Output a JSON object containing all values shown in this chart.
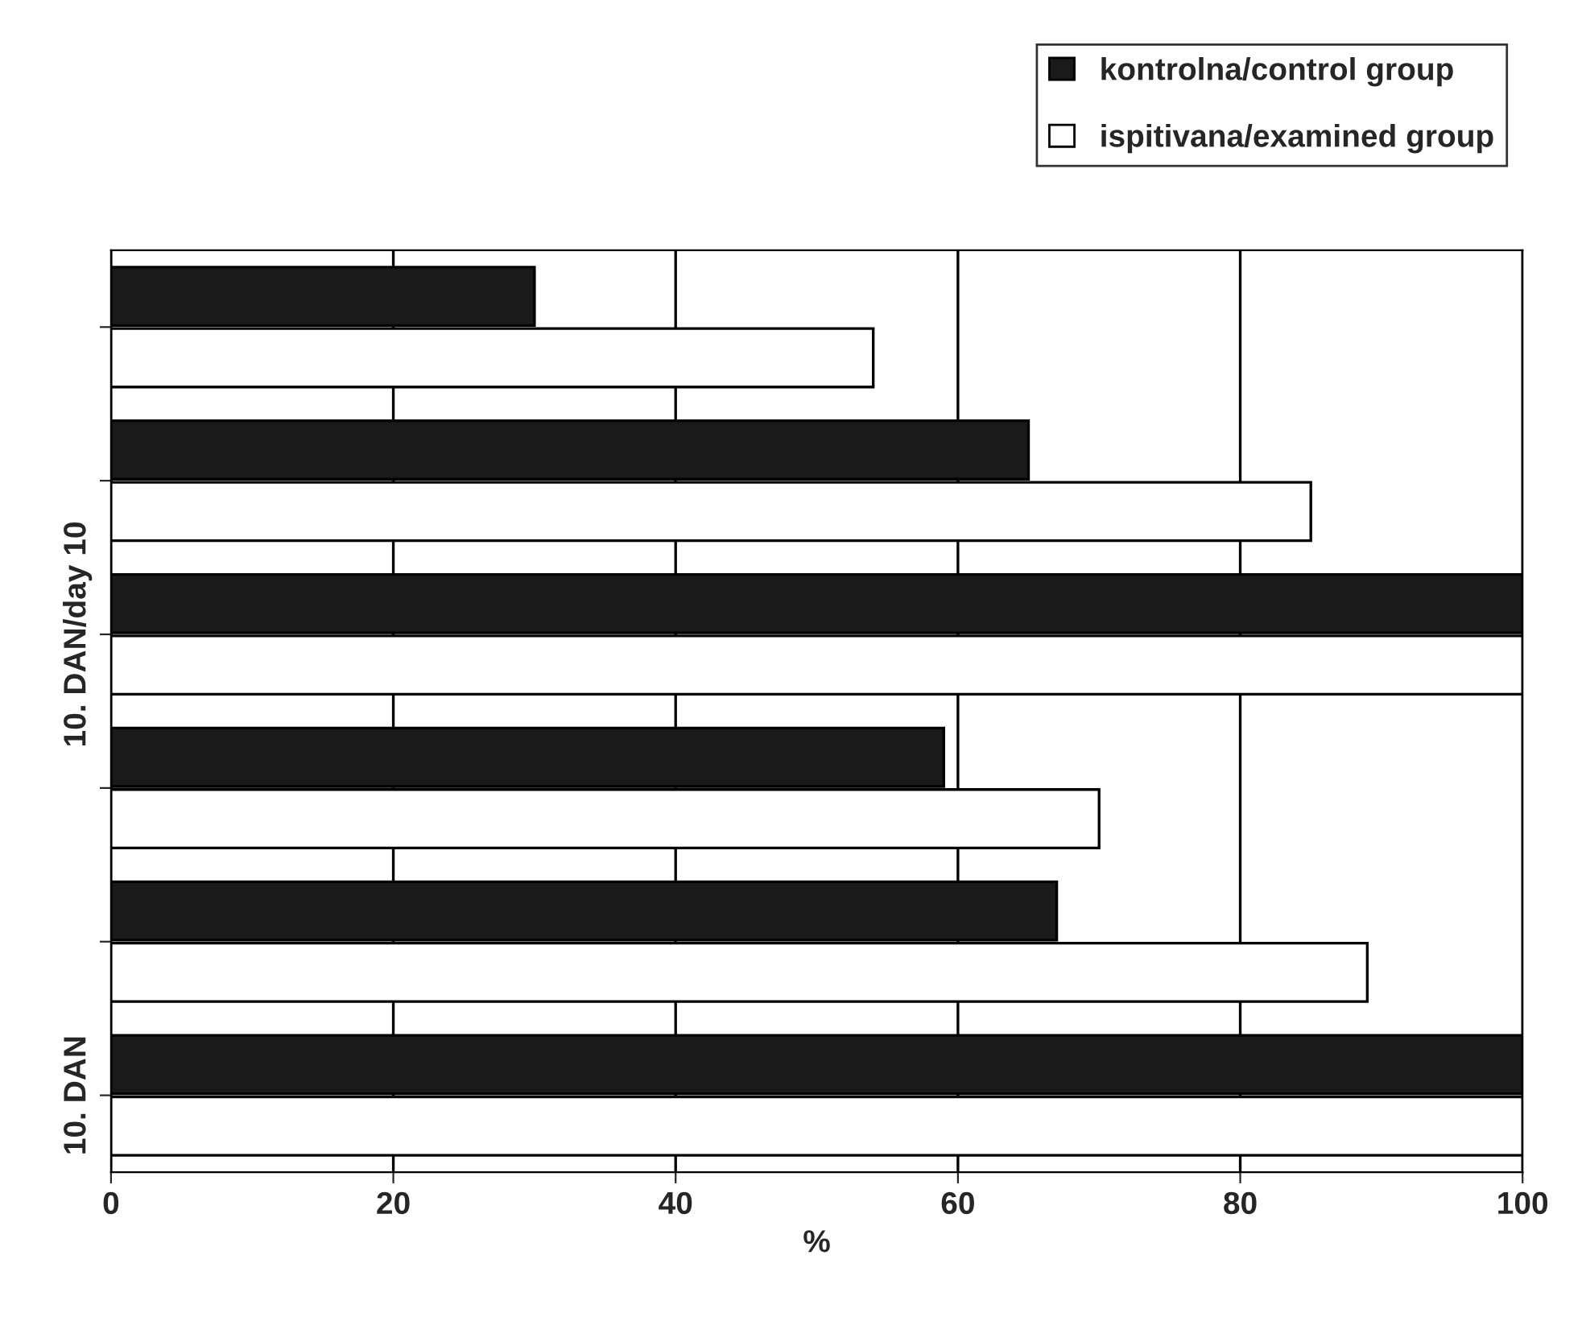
{
  "chart_data": {
    "type": "bar",
    "orientation": "horizontal",
    "xlabel": "%",
    "categories": [
      null,
      null,
      "10. DAN/day 10",
      null,
      null,
      "10. DAN"
    ],
    "series": [
      {
        "name": "kontrolna/control group",
        "color": "#1a1a1a",
        "values": [
          30,
          65,
          100,
          59,
          67,
          100
        ]
      },
      {
        "name": "ispitivana/examined group",
        "color": "#ffffff",
        "values": [
          54,
          85,
          100,
          70,
          89,
          100
        ]
      }
    ],
    "xlim": [
      0,
      100
    ],
    "xticks": [
      0,
      20,
      40,
      60,
      80,
      100
    ],
    "grid": "x",
    "legend": "top right"
  }
}
